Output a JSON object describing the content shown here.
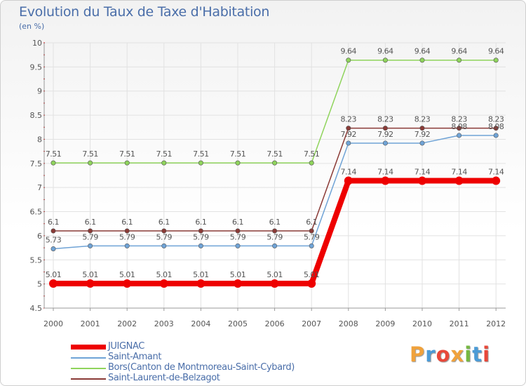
{
  "title": "Evolution du Taux de Taxe d'Habitation",
  "unit": "(en %)",
  "brand": {
    "letters": [
      {
        "ch": "P",
        "color": "#f0a23c"
      },
      {
        "ch": "r",
        "color": "#4c9bd6"
      },
      {
        "ch": "o",
        "color": "#e8483a"
      },
      {
        "ch": "x",
        "color": "#f0a23c"
      },
      {
        "ch": "i",
        "color": "#76b842"
      },
      {
        "ch": "t",
        "color": "#4c9bd6"
      },
      {
        "ch": "i",
        "color": "#e8483a"
      }
    ]
  },
  "chart_data": {
    "type": "line",
    "title": "Evolution du Taux de Taxe d'Habitation",
    "ylabel": "(en %)",
    "xlabel": "",
    "ylim": [
      4.5,
      10
    ],
    "yticks": [
      "4.5",
      "5",
      "5.5",
      "6",
      "6.5",
      "7",
      "7.5",
      "8",
      "8.5",
      "9",
      "9.5",
      "10"
    ],
    "categories": [
      "2000",
      "2001",
      "2002",
      "2003",
      "2004",
      "2005",
      "2006",
      "2007",
      "2008",
      "2009",
      "2010",
      "2011",
      "2012"
    ],
    "series": [
      {
        "name": "Bors(Canton de Montmoreau-Saint-Cybard)",
        "color": "#8fd45c",
        "values": [
          7.51,
          7.51,
          7.51,
          7.51,
          7.51,
          7.51,
          7.51,
          7.51,
          9.64,
          9.64,
          9.64,
          9.64,
          9.64
        ],
        "labels": [
          "7.51",
          "7.51",
          "7.51",
          "7.51",
          "7.51",
          "7.51",
          "7.51",
          "7.51",
          "9.64",
          "9.64",
          "9.64",
          "9.64",
          "9.64"
        ]
      },
      {
        "name": "Saint-Laurent-de-Belzagot",
        "color": "#8a3a36",
        "values": [
          6.1,
          6.1,
          6.1,
          6.1,
          6.1,
          6.1,
          6.1,
          6.1,
          8.23,
          8.23,
          8.23,
          8.23,
          8.23
        ],
        "labels": [
          "6.1",
          "6.1",
          "6.1",
          "6.1",
          "6.1",
          "6.1",
          "6.1",
          "6.1",
          "8.23",
          "8.23",
          "8.23",
          "8.23",
          "8.23"
        ]
      },
      {
        "name": "Saint-Amant",
        "color": "#6fa3d6",
        "values": [
          5.73,
          5.79,
          5.79,
          5.79,
          5.79,
          5.79,
          5.79,
          5.79,
          7.92,
          7.92,
          7.92,
          8.08,
          8.08
        ],
        "labels": [
          "5.73",
          "5.79",
          "5.79",
          "5.79",
          "5.79",
          "5.79",
          "5.79",
          "5.79",
          "7.92",
          "7.92",
          "7.92",
          "8.08",
          "8.08"
        ]
      },
      {
        "name": "JUIGNAC",
        "color": "#ee0000",
        "values": [
          5.01,
          5.01,
          5.01,
          5.01,
          5.01,
          5.01,
          5.01,
          5.01,
          7.14,
          7.14,
          7.14,
          7.14,
          7.14
        ],
        "labels": [
          "5.01",
          "5.01",
          "5.01",
          "5.01",
          "5.01",
          "5.01",
          "5.01",
          "5.01",
          "7.14",
          "7.14",
          "7.14",
          "7.14",
          "7.14"
        ]
      }
    ],
    "legend": [
      {
        "name": "JUIGNAC",
        "color": "#ee0000",
        "thick": true
      },
      {
        "name": "Saint-Amant",
        "color": "#6fa3d6",
        "thick": false
      },
      {
        "name": "Bors(Canton de Montmoreau-Saint-Cybard)",
        "color": "#8fd45c",
        "thick": false
      },
      {
        "name": "Saint-Laurent-de-Belzagot",
        "color": "#8a3a36",
        "thick": false
      }
    ],
    "legend_position": "bottom-left"
  }
}
